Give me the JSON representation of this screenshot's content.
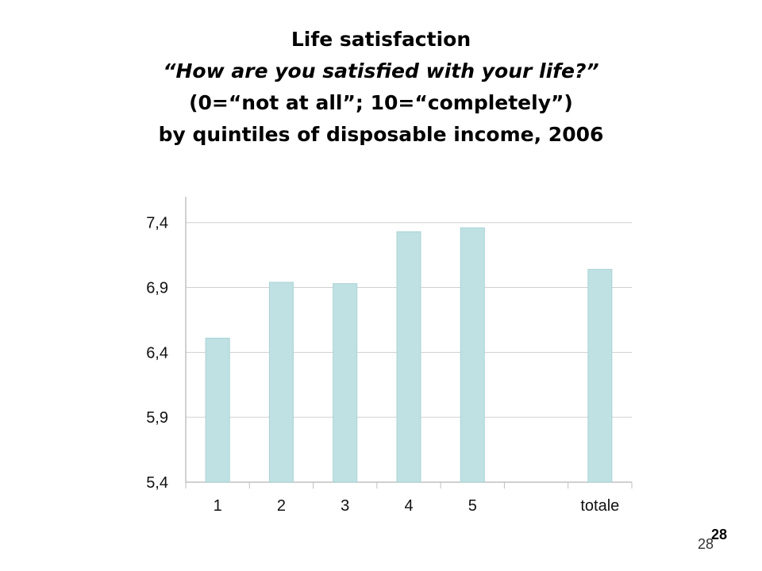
{
  "slide": {
    "title_lines": [
      "Life satisfaction",
      "“How are you satisfied with your life?”",
      "(0=“not at all”; 10=“completely”)",
      "by quintiles of disposable income, 2006"
    ],
    "page_number": "28",
    "page_number_footer": "28"
  },
  "colors": {
    "bar_fill": "#bfe1e3",
    "bar_stroke": "#a8d3d6",
    "grid": "#d0d0d0",
    "axis": "#c0c0c0"
  },
  "chart_data": {
    "type": "bar",
    "categories": [
      "1",
      "2",
      "3",
      "4",
      "5",
      "",
      "totale"
    ],
    "values": [
      6.51,
      6.94,
      6.93,
      7.33,
      7.36,
      null,
      7.04
    ],
    "y_ticks": [
      "5,4",
      "5,9",
      "6,4",
      "6,9",
      "7,4"
    ],
    "ylim": [
      5.4,
      7.6
    ],
    "grid": true,
    "legend": "none",
    "title": "",
    "xlabel": "",
    "ylabel": ""
  }
}
